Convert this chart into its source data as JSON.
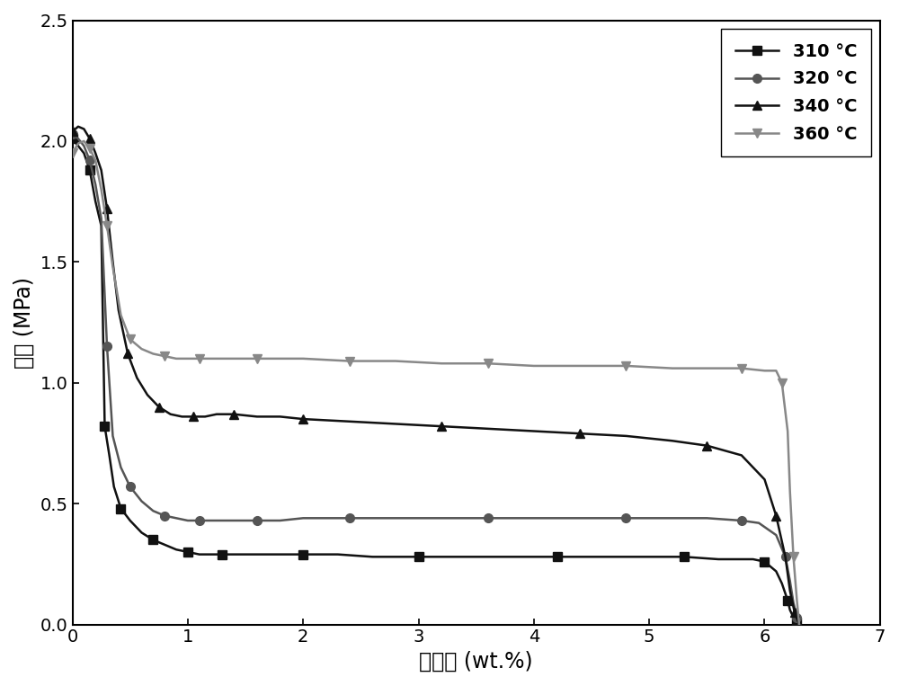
{
  "title": "",
  "xlabel": "含氢量 (wt.%)",
  "ylabel": "气压 (MPa)",
  "xlim": [
    0,
    7
  ],
  "ylim": [
    0.0,
    2.5
  ],
  "xticks": [
    0,
    1,
    2,
    3,
    4,
    5,
    6,
    7
  ],
  "yticks": [
    0.0,
    0.5,
    1.0,
    1.5,
    2.0,
    2.5
  ],
  "series": [
    {
      "label": "310 °C",
      "color": "#111111",
      "marker": "s",
      "markersize": 7,
      "linewidth": 1.8,
      "x": [
        0.0,
        0.05,
        0.1,
        0.15,
        0.2,
        0.25,
        0.28,
        0.32,
        0.36,
        0.42,
        0.5,
        0.6,
        0.7,
        0.8,
        0.9,
        1.0,
        1.1,
        1.2,
        1.3,
        1.5,
        1.7,
        2.0,
        2.3,
        2.6,
        3.0,
        3.4,
        3.8,
        4.2,
        4.6,
        5.0,
        5.3,
        5.6,
        5.9,
        6.0,
        6.1,
        6.15,
        6.2,
        6.22,
        6.25,
        6.28,
        6.3
      ],
      "y": [
        2.01,
        1.98,
        1.95,
        1.88,
        1.75,
        1.65,
        0.82,
        0.7,
        0.57,
        0.48,
        0.43,
        0.38,
        0.35,
        0.33,
        0.31,
        0.3,
        0.29,
        0.29,
        0.29,
        0.29,
        0.29,
        0.29,
        0.29,
        0.28,
        0.28,
        0.28,
        0.28,
        0.28,
        0.28,
        0.28,
        0.28,
        0.27,
        0.27,
        0.26,
        0.22,
        0.17,
        0.1,
        0.06,
        0.03,
        0.01,
        0.0
      ]
    },
    {
      "label": "320 °C",
      "color": "#555555",
      "marker": "o",
      "markersize": 7,
      "linewidth": 1.8,
      "x": [
        0.0,
        0.05,
        0.1,
        0.15,
        0.2,
        0.25,
        0.3,
        0.35,
        0.42,
        0.5,
        0.6,
        0.7,
        0.8,
        0.9,
        1.0,
        1.1,
        1.2,
        1.4,
        1.6,
        1.8,
        2.0,
        2.4,
        2.8,
        3.2,
        3.6,
        4.0,
        4.4,
        4.8,
        5.2,
        5.5,
        5.8,
        5.95,
        6.1,
        6.18,
        6.22,
        6.25,
        6.28,
        6.3
      ],
      "y": [
        2.03,
        2.01,
        1.98,
        1.92,
        1.82,
        1.68,
        1.15,
        0.78,
        0.65,
        0.57,
        0.51,
        0.47,
        0.45,
        0.44,
        0.43,
        0.43,
        0.43,
        0.43,
        0.43,
        0.43,
        0.44,
        0.44,
        0.44,
        0.44,
        0.44,
        0.44,
        0.44,
        0.44,
        0.44,
        0.44,
        0.43,
        0.42,
        0.37,
        0.28,
        0.18,
        0.09,
        0.03,
        0.0
      ]
    },
    {
      "label": "340 °C",
      "color": "#111111",
      "marker": "^",
      "markersize": 7,
      "linewidth": 1.8,
      "x": [
        0.0,
        0.05,
        0.1,
        0.15,
        0.2,
        0.25,
        0.3,
        0.35,
        0.4,
        0.48,
        0.56,
        0.65,
        0.75,
        0.85,
        0.95,
        1.05,
        1.15,
        1.25,
        1.4,
        1.6,
        1.8,
        2.0,
        2.4,
        2.8,
        3.2,
        3.6,
        4.0,
        4.4,
        4.8,
        5.2,
        5.5,
        5.8,
        6.0,
        6.1,
        6.18,
        6.22,
        6.26,
        6.3
      ],
      "y": [
        2.04,
        2.06,
        2.05,
        2.01,
        1.95,
        1.88,
        1.72,
        1.5,
        1.3,
        1.12,
        1.02,
        0.95,
        0.9,
        0.87,
        0.86,
        0.86,
        0.86,
        0.87,
        0.87,
        0.86,
        0.86,
        0.85,
        0.84,
        0.83,
        0.82,
        0.81,
        0.8,
        0.79,
        0.78,
        0.76,
        0.74,
        0.7,
        0.6,
        0.45,
        0.28,
        0.14,
        0.05,
        0.0
      ]
    },
    {
      "label": "360 °C",
      "color": "#888888",
      "marker": "v",
      "markersize": 7,
      "linewidth": 1.8,
      "x": [
        0.0,
        0.05,
        0.1,
        0.15,
        0.2,
        0.25,
        0.3,
        0.35,
        0.42,
        0.5,
        0.6,
        0.7,
        0.8,
        0.9,
        1.0,
        1.1,
        1.2,
        1.4,
        1.6,
        1.8,
        2.0,
        2.4,
        2.8,
        3.2,
        3.6,
        4.0,
        4.4,
        4.8,
        5.2,
        5.5,
        5.8,
        6.0,
        6.1,
        6.15,
        6.2,
        6.22,
        6.25,
        6.28,
        6.3
      ],
      "y": [
        1.95,
        1.99,
        2.0,
        1.97,
        1.92,
        1.8,
        1.65,
        1.48,
        1.28,
        1.18,
        1.14,
        1.12,
        1.11,
        1.1,
        1.1,
        1.1,
        1.1,
        1.1,
        1.1,
        1.1,
        1.1,
        1.09,
        1.09,
        1.08,
        1.08,
        1.07,
        1.07,
        1.07,
        1.06,
        1.06,
        1.06,
        1.05,
        1.05,
        1.0,
        0.8,
        0.55,
        0.28,
        0.1,
        0.0
      ]
    }
  ],
  "legend_fontsize": 14,
  "axis_label_fontsize": 17,
  "tick_fontsize": 14,
  "background_color": "#ffffff",
  "marker_every": 3
}
